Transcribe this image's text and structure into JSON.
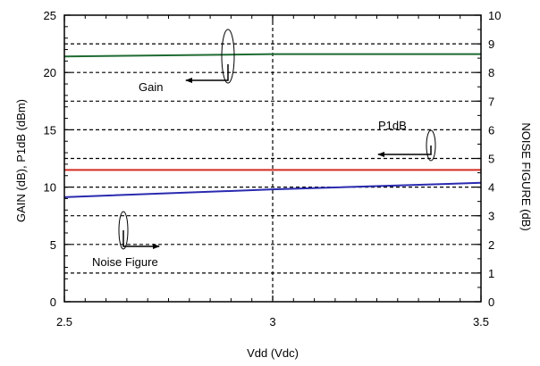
{
  "chart_data": {
    "type": "line",
    "title": "",
    "xlabel": "Vdd (Vdc)",
    "ylabel_left": "GAIN (dB), P1dB (dBm)",
    "ylabel_right": "NOISE FIGURE (dB)",
    "xlim": [
      2.5,
      3.5
    ],
    "ylim_left": [
      0,
      25
    ],
    "ylim_right": [
      0,
      10
    ],
    "x_ticks": [
      "2.5",
      "3",
      "3.5"
    ],
    "y_left_ticks": [
      "0",
      "5",
      "10",
      "15",
      "20",
      "25"
    ],
    "y_right_ticks": [
      "0",
      "1",
      "2",
      "3",
      "4",
      "5",
      "6",
      "7",
      "8",
      "9",
      "10"
    ],
    "grid": true,
    "x": [
      2.5,
      3.0,
      3.5
    ],
    "series": [
      {
        "name": "Gain",
        "axis": "left",
        "color": "#1e6b32",
        "values": [
          21.4,
          21.6,
          21.6
        ]
      },
      {
        "name": "P1dB",
        "axis": "left",
        "color": "#d42a20",
        "values": [
          11.5,
          11.5,
          11.5
        ]
      },
      {
        "name": "Noise Figure",
        "axis": "right",
        "color": "#2a2ab0",
        "values": [
          3.65,
          3.92,
          4.15
        ]
      }
    ]
  }
}
